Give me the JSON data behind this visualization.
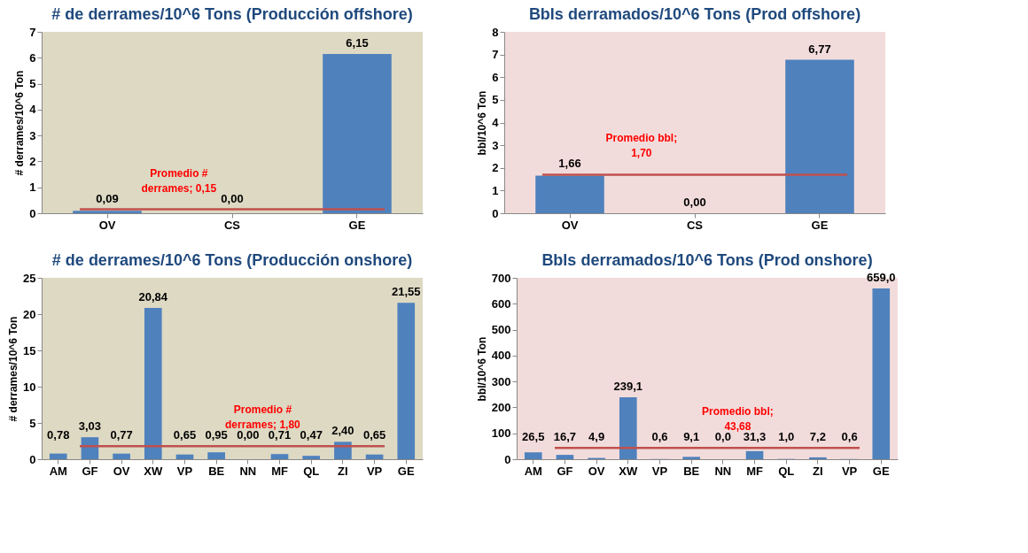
{
  "chart_data": [
    {
      "type": "bar",
      "title": "# de derrames/10^6 Tons (Producción offshore)",
      "ylabel": "# derrames/10^6 Ton",
      "categories": [
        "OV",
        "CS",
        "GE"
      ],
      "values": [
        0.09,
        0.0,
        6.15
      ],
      "value_labels": [
        "0,09",
        "0,00",
        "6,15"
      ],
      "color": "#4f81bd",
      "ylim": [
        0,
        7
      ],
      "yticks": [
        0,
        1,
        2,
        3,
        4,
        5,
        6,
        7
      ],
      "ref_lines": [
        {
          "axis": "y",
          "value": 0.15,
          "label": "Promedio #\nderrames; 0,15",
          "color": "#c0504d"
        }
      ]
    },
    {
      "type": "bar",
      "title": "Bbls derramados/10^6 Tons (Prod offshore)",
      "ylabel": "bbl/10^6 Ton",
      "categories": [
        "OV",
        "CS",
        "GE"
      ],
      "values": [
        1.66,
        0.0,
        6.77
      ],
      "value_labels": [
        "1,66",
        "0,00",
        "6,77"
      ],
      "color": "#4f81bd",
      "ylim": [
        0,
        8
      ],
      "yticks": [
        0,
        1,
        2,
        3,
        4,
        5,
        6,
        7,
        8
      ],
      "ref_lines": [
        {
          "axis": "y",
          "value": 1.7,
          "label": "Promedio bbl;\n1,70",
          "color": "#c0504d"
        }
      ]
    },
    {
      "type": "bar",
      "title": "# de derrames/10^6 Tons (Producción onshore)",
      "ylabel": "# derrames/10^6 Ton",
      "categories": [
        "AM",
        "GF",
        "OV",
        "XW",
        "VP",
        "BE",
        "NN",
        "MF",
        "QL",
        "ZI",
        "VP",
        "GE"
      ],
      "values": [
        0.78,
        3.03,
        0.77,
        20.84,
        0.65,
        0.95,
        0.0,
        0.71,
        0.47,
        2.4,
        0.65,
        21.55
      ],
      "value_labels": [
        "0,78",
        "3,03",
        "0,77",
        "20,84",
        "0,65",
        "0,95",
        "0,00",
        "0,71",
        "0,47",
        "2,40",
        "0,65",
        "21,55"
      ],
      "color": "#4f81bd",
      "ylim": [
        0,
        25
      ],
      "yticks": [
        0,
        5,
        10,
        15,
        20,
        25
      ],
      "ref_lines": [
        {
          "axis": "y",
          "value": 1.8,
          "label": "Promedio #\nderrames; 1,80",
          "color": "#c0504d"
        }
      ]
    },
    {
      "type": "bar",
      "title": "Bbls derramados/10^6 Tons (Prod onshore)",
      "ylabel": "bbl/10^6 Ton",
      "categories": [
        "AM",
        "GF",
        "OV",
        "XW",
        "VP",
        "BE",
        "NN",
        "MF",
        "QL",
        "ZI",
        "VP",
        "GE"
      ],
      "values": [
        26.5,
        16.7,
        4.9,
        239.1,
        0.6,
        9.1,
        0.0,
        31.3,
        1.0,
        7.2,
        0.6,
        659.0
      ],
      "value_labels": [
        "26,5",
        "16,7",
        "4,9",
        "239,1",
        "0,6",
        "9,1",
        "0,0",
        "31,3",
        "1,0",
        "7,2",
        "0,6",
        "659,0"
      ],
      "color": "#4f81bd",
      "ylim": [
        0,
        700
      ],
      "yticks": [
        0,
        100,
        200,
        300,
        400,
        500,
        600,
        700
      ],
      "ref_lines": [
        {
          "axis": "y",
          "value": 43.68,
          "label": "Promedio bbl;\n43,68",
          "color": "#c0504d"
        }
      ]
    }
  ]
}
